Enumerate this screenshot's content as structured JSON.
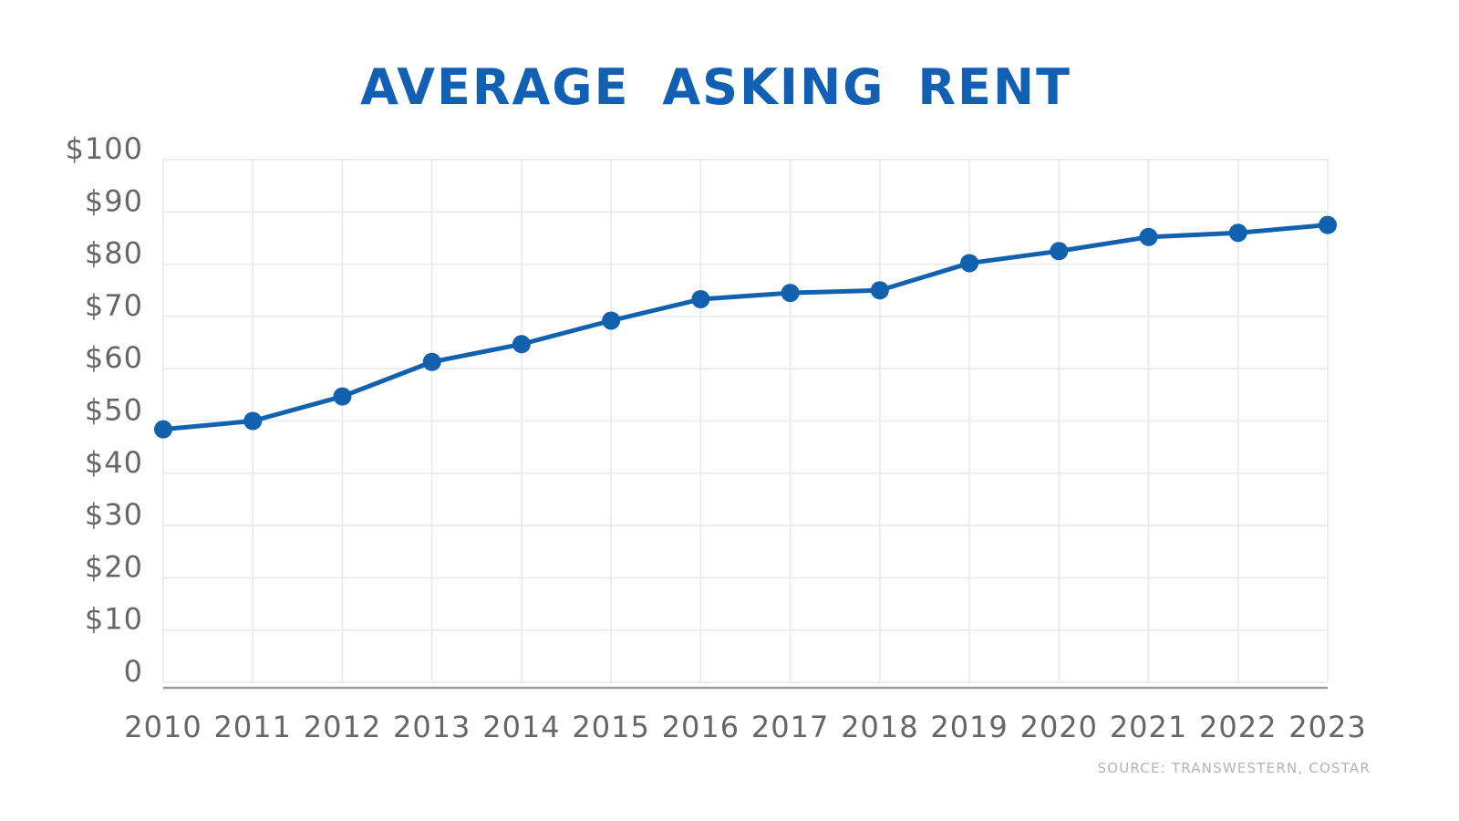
{
  "title": "AVERAGE ASKING RENT",
  "source_note": "SOURCE: TRANSWESTERN, COSTAR",
  "colors": {
    "title_text": "#1160b4",
    "line": "#1261ae",
    "marker": "#1261ae",
    "axis_text": "#666666",
    "gridline": "#e9e9e9",
    "axis_line": "#9b9b9b",
    "source_text": "#b4b4b4",
    "background": "#ffffff"
  },
  "chart_data": {
    "type": "line",
    "title": "AVERAGE ASKING RENT",
    "categories": [
      "2010",
      "2011",
      "2012",
      "2013",
      "2014",
      "2015",
      "2016",
      "2017",
      "2018",
      "2019",
      "2020",
      "2021",
      "2022",
      "2023"
    ],
    "series": [
      {
        "name": "Average Asking Rent",
        "values": [
          48.4,
          50.0,
          54.7,
          61.3,
          64.7,
          69.2,
          73.3,
          74.5,
          75.0,
          80.2,
          82.5,
          85.2,
          86.0,
          87.5
        ]
      }
    ],
    "xlabel": "",
    "ylabel": "",
    "ylim": [
      0,
      100
    ],
    "ytick_interval": 10,
    "ytick_labels": [
      "0",
      "$10",
      "$20",
      "$30",
      "$40",
      "$50",
      "$60",
      "$70",
      "$80",
      "$90",
      "$100"
    ],
    "grid": true,
    "grid_vertical": true,
    "legend": false,
    "legend_position": "none",
    "marker": "circle",
    "annotations": [
      "SOURCE: TRANSWESTERN, COSTAR"
    ]
  }
}
